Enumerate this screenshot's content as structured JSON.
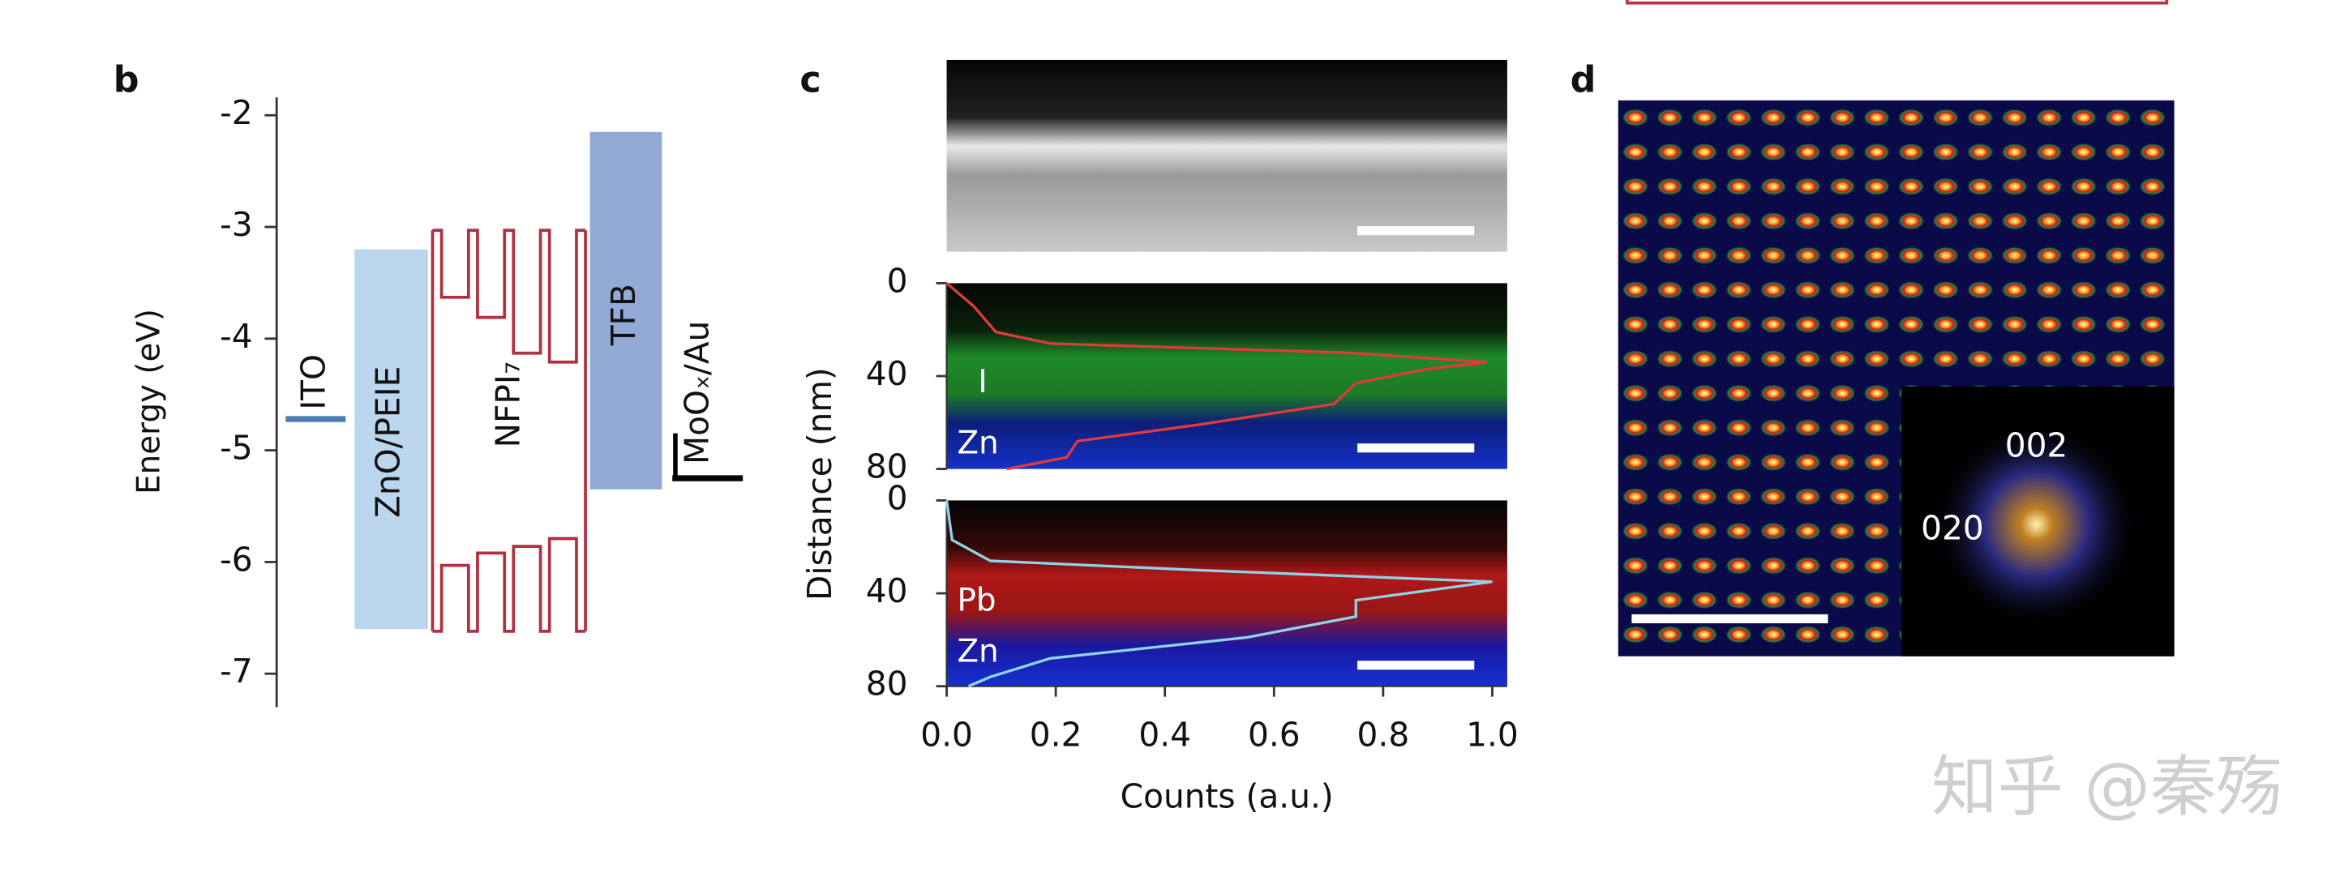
{
  "chart_data": [
    {
      "type": "energy-diagram",
      "label": "b",
      "ylabel": "Energy (eV)",
      "ylim": [
        -7.3,
        -1.84
      ],
      "yticks": [
        -2,
        -3,
        -4,
        -5,
        -6,
        -7
      ],
      "layers": [
        {
          "name": "ITO",
          "values": [
            -4.72
          ],
          "color": "#4a7fb5"
        },
        {
          "name": "ZnO/PEIE",
          "values": [
            -3.2,
            -6.6
          ],
          "color": "#bcd6ee"
        },
        {
          "name": "NFPI₇",
          "values": [
            -3.03,
            -6.62
          ],
          "wells": [
            [
              -3.63,
              -6.03
            ],
            [
              -3.81,
              -5.92
            ],
            [
              -4.13,
              -5.86
            ],
            [
              -4.21,
              -5.79
            ]
          ],
          "color": "#b03040"
        },
        {
          "name": "TFB",
          "values": [
            -2.15,
            -5.35
          ],
          "color": "#93aad6"
        },
        {
          "name": "MoOₓ/Au",
          "values": [
            -5.25
          ],
          "color": "#000000"
        }
      ]
    },
    {
      "type": "line",
      "label": "c",
      "ylabel": "Distance (nm)",
      "y_inverted": true,
      "xlim": [
        0,
        1
      ],
      "ylim": [
        0,
        80
      ],
      "yticks": [
        0,
        40,
        80
      ],
      "annotations": [
        "I",
        "Zn"
      ],
      "series": [
        {
          "color": "#e03a3a",
          "x": [
            0,
            0.05,
            0.09,
            0.19,
            0.74,
            0.99,
            0.88,
            0.75,
            0.71,
            0.46,
            0.24,
            0.22,
            0.11
          ],
          "values": [
            0,
            10,
            21,
            26,
            30,
            34,
            37,
            43,
            52,
            61,
            68,
            75,
            80
          ]
        }
      ]
    },
    {
      "type": "line",
      "xlabel": "Counts (a.u.)",
      "y_inverted": true,
      "xlim": [
        0,
        1
      ],
      "ylim": [
        0,
        80
      ],
      "yticks": [
        0,
        40,
        80
      ],
      "xticks": [
        {
          "value": 0,
          "label": "0.0"
        },
        0.2,
        0.4,
        0.6,
        0.8,
        {
          "value": 1,
          "label": "1.0"
        }
      ],
      "annotations": [
        "Pb",
        "Zn"
      ],
      "series": [
        {
          "color": "#8fd3e8",
          "x": [
            0,
            0.01,
            0.08,
            0.46,
            1.0,
            0.75,
            0.75,
            0.55,
            0.19,
            0.08,
            0.04
          ],
          "values": [
            0,
            17,
            26,
            30,
            35,
            43,
            50,
            59,
            68,
            76,
            80
          ]
        }
      ]
    },
    {
      "type": "image",
      "label": "d",
      "annotations": [
        "002",
        "020"
      ]
    }
  ],
  "watermark": "知乎 @秦殇"
}
